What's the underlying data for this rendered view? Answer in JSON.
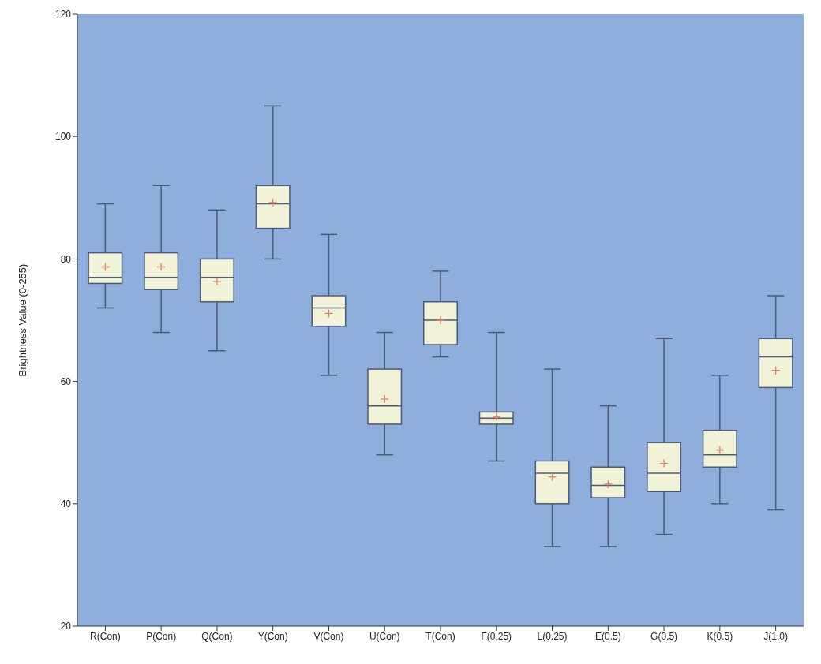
{
  "chart_data": {
    "type": "box",
    "ylabel": "Brightness Value (0-255)",
    "categories": [
      "R(Con)",
      "P(Con)",
      "Q(Con)",
      "Y(Con)",
      "V(Con)",
      "U(Con)",
      "T(Con)",
      "F(0.25)",
      "L(0.25)",
      "E(0.5)",
      "G(0.5)",
      "K(0.5)",
      "J(1.0)"
    ],
    "color": "#f2f2d8",
    "boxes": [
      {
        "low": 72,
        "q1": 76,
        "median": 77,
        "q3": 81,
        "high": 89,
        "mean": 78.7
      },
      {
        "low": 68,
        "q1": 75,
        "median": 77,
        "q3": 81,
        "high": 92,
        "mean": 78.7
      },
      {
        "low": 65,
        "q1": 73,
        "median": 77,
        "q3": 80,
        "high": 88,
        "mean": 76.3
      },
      {
        "low": 80,
        "q1": 85,
        "median": 89,
        "q3": 92,
        "high": 105,
        "mean": 89.2
      },
      {
        "low": 61,
        "q1": 69,
        "median": 72,
        "q3": 74,
        "high": 84,
        "mean": 71.1
      },
      {
        "low": 48,
        "q1": 53,
        "median": 56,
        "q3": 62,
        "high": 68,
        "mean": 57.1
      },
      {
        "low": 64,
        "q1": 66,
        "median": 70,
        "q3": 73,
        "high": 78,
        "mean": 70
      },
      {
        "low": 47,
        "q1": 53,
        "median": 54,
        "q3": 55,
        "high": 68,
        "mean": 54.2
      },
      {
        "low": 33,
        "q1": 40,
        "median": 45,
        "q3": 47,
        "high": 62,
        "mean": 44.4
      },
      {
        "low": 33,
        "q1": 41,
        "median": 43,
        "q3": 46,
        "high": 56,
        "mean": 43.2
      },
      {
        "low": 35,
        "q1": 42,
        "median": 45,
        "q3": 50,
        "high": 67,
        "mean": 46.6
      },
      {
        "low": 40,
        "q1": 46,
        "median": 48,
        "q3": 52,
        "high": 61,
        "mean": 48.8
      },
      {
        "low": 39,
        "q1": 59,
        "median": 64,
        "q3": 67,
        "high": 74,
        "mean": 61.8
      }
    ],
    "ylim": [
      20,
      120
    ],
    "yticks": [
      20,
      40,
      60,
      80,
      100,
      120
    ],
    "grid": false
  }
}
